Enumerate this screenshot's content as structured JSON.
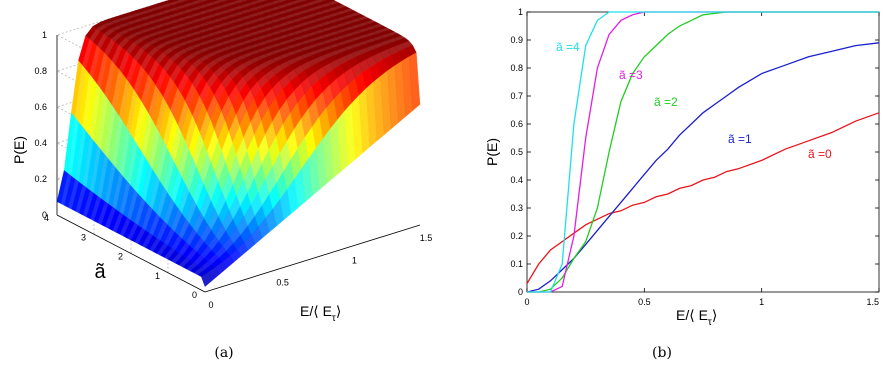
{
  "panels": {
    "left_caption": "(a)",
    "right_caption": "(b)"
  },
  "chart_data": [
    {
      "type": "surface",
      "panel": "(a)",
      "zlabel": "P(E)",
      "ylabel": "ã",
      "xlabel": "E/⟨ E",
      "xlabel_sub": "τ",
      "xlabel_close": "⟩",
      "z_ticks": [
        "0",
        "0.2",
        "0.4",
        "0.6",
        "0.8",
        "1"
      ],
      "a_ticks": [
        "0",
        "1",
        "2",
        "3",
        "4"
      ],
      "e_ticks": [
        "0",
        "0.5",
        "1",
        "1.5"
      ],
      "xlim": [
        0,
        1.5
      ],
      "ylim": [
        0,
        4
      ],
      "zlim": [
        0,
        1
      ],
      "colormap": "jet",
      "grid": true
    },
    {
      "type": "line",
      "panel": "(b)",
      "xlabel": "E/⟨ E",
      "xlabel_sub": "τ",
      "xlabel_close": "⟩",
      "ylabel": "P(E)",
      "xlim": [
        0,
        1.5
      ],
      "ylim": [
        0,
        1
      ],
      "x_ticks": [
        "0",
        "0.5",
        "1",
        "1.5"
      ],
      "y_ticks": [
        "0",
        "0.1",
        "0.2",
        "0.3",
        "0.4",
        "0.5",
        "0.6",
        "0.7",
        "0.8",
        "0.9",
        "1"
      ],
      "x": [
        0,
        0.05,
        0.1,
        0.15,
        0.2,
        0.25,
        0.3,
        0.35,
        0.4,
        0.45,
        0.5,
        0.55,
        0.6,
        0.65,
        0.7,
        0.75,
        0.8,
        0.85,
        0.9,
        1.0,
        1.1,
        1.2,
        1.3,
        1.4,
        1.5
      ],
      "series": [
        {
          "name": "ã =0",
          "color": "#e8141c",
          "values": [
            0.03,
            0.1,
            0.15,
            0.18,
            0.21,
            0.24,
            0.26,
            0.28,
            0.29,
            0.31,
            0.32,
            0.34,
            0.35,
            0.37,
            0.38,
            0.4,
            0.41,
            0.43,
            0.44,
            0.47,
            0.51,
            0.54,
            0.57,
            0.61,
            0.64
          ]
        },
        {
          "name": "ã =1",
          "color": "#1a1fd0",
          "values": [
            0.0,
            0.01,
            0.04,
            0.08,
            0.12,
            0.17,
            0.22,
            0.27,
            0.32,
            0.37,
            0.42,
            0.47,
            0.51,
            0.56,
            0.6,
            0.64,
            0.67,
            0.7,
            0.73,
            0.78,
            0.81,
            0.84,
            0.86,
            0.88,
            0.89
          ]
        },
        {
          "name": "ã =2",
          "color": "#22cc22",
          "values": [
            0.0,
            0.0,
            0.01,
            0.05,
            0.12,
            0.18,
            0.3,
            0.5,
            0.68,
            0.78,
            0.84,
            0.88,
            0.92,
            0.95,
            0.97,
            0.99,
            0.995,
            1.0,
            1.0,
            1.0,
            1.0,
            1.0,
            1.0,
            1.0,
            1.0
          ]
        },
        {
          "name": "ã =3",
          "color": "#e21fe3",
          "values": [
            0.0,
            0.0,
            0.0,
            0.02,
            0.2,
            0.55,
            0.8,
            0.92,
            0.97,
            0.99,
            1.0,
            1.0,
            1.0,
            1.0,
            1.0,
            1.0,
            1.0,
            1.0,
            1.0,
            1.0,
            1.0,
            1.0,
            1.0,
            1.0,
            1.0
          ]
        },
        {
          "name": "ã =4",
          "color": "#1fe0e6",
          "values": [
            0.0,
            0.0,
            0.0,
            0.1,
            0.6,
            0.88,
            0.97,
            1.0,
            1.0,
            1.0,
            1.0,
            1.0,
            1.0,
            1.0,
            1.0,
            1.0,
            1.0,
            1.0,
            1.0,
            1.0,
            1.0,
            1.0,
            1.0,
            1.0,
            1.0
          ]
        }
      ]
    }
  ]
}
